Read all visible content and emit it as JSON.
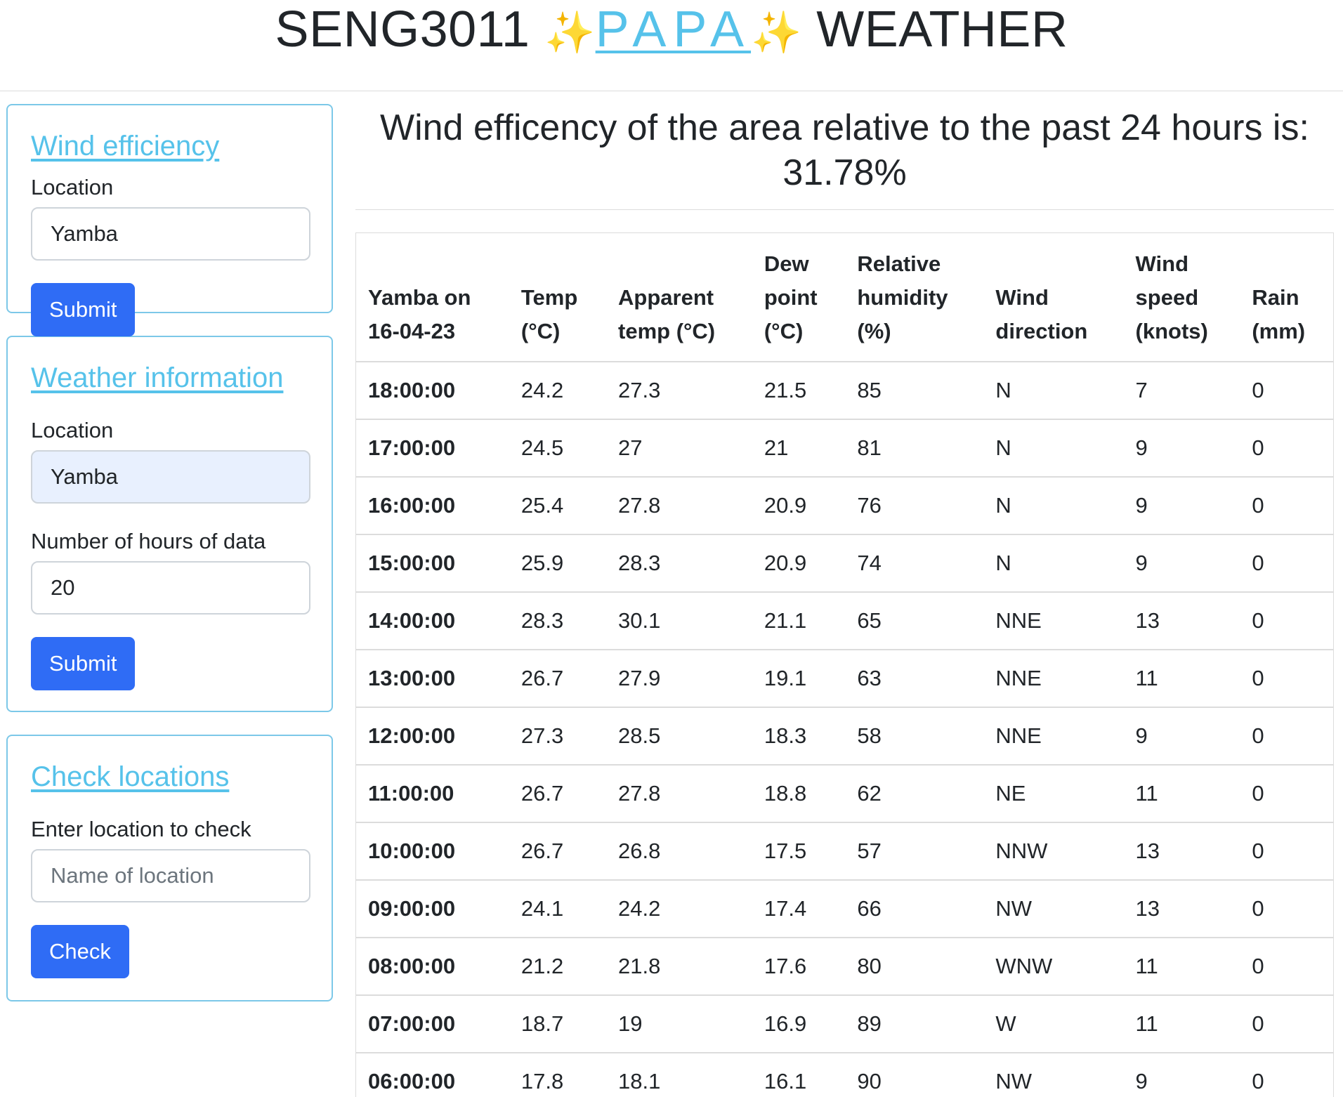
{
  "header": {
    "prefix": "SENG3011 ",
    "spark_left": "✨",
    "brand": "PAPA",
    "spark_right": "✨",
    "suffix": " WEATHER"
  },
  "wind_card": {
    "title": "Wind efficiency",
    "location_label": "Location",
    "location_value": "Yamba",
    "submit_label": "Submit"
  },
  "weather_card": {
    "title": "Weather information",
    "location_label": "Location",
    "location_value": "Yamba",
    "hours_label": "Number of hours of data",
    "hours_value": "20",
    "submit_label": "Submit"
  },
  "check_card": {
    "title": "Check locations",
    "label": "Enter location to check",
    "placeholder": "Name of location",
    "button_label": "Check"
  },
  "result": {
    "line1": "Wind efficency of the area relative to the past 24 hours is:",
    "line2": "31.78%"
  },
  "table": {
    "headers": [
      [
        "Yamba on",
        "16-04-23"
      ],
      [
        "Temp",
        "(°C)"
      ],
      [
        "Apparent",
        "temp (°C)"
      ],
      [
        "Dew",
        "point",
        "(°C)"
      ],
      [
        "Relative",
        "humidity",
        "(%)"
      ],
      [
        "Wind",
        "direction"
      ],
      [
        "Wind",
        "speed",
        "(knots)"
      ],
      [
        "Rain",
        "(mm)"
      ]
    ],
    "rows": [
      [
        "18:00:00",
        "24.2",
        "27.3",
        "21.5",
        "85",
        "N",
        "7",
        "0"
      ],
      [
        "17:00:00",
        "24.5",
        "27",
        "21",
        "81",
        "N",
        "9",
        "0"
      ],
      [
        "16:00:00",
        "25.4",
        "27.8",
        "20.9",
        "76",
        "N",
        "9",
        "0"
      ],
      [
        "15:00:00",
        "25.9",
        "28.3",
        "20.9",
        "74",
        "N",
        "9",
        "0"
      ],
      [
        "14:00:00",
        "28.3",
        "30.1",
        "21.1",
        "65",
        "NNE",
        "13",
        "0"
      ],
      [
        "13:00:00",
        "26.7",
        "27.9",
        "19.1",
        "63",
        "NNE",
        "11",
        "0"
      ],
      [
        "12:00:00",
        "27.3",
        "28.5",
        "18.3",
        "58",
        "NNE",
        "9",
        "0"
      ],
      [
        "11:00:00",
        "26.7",
        "27.8",
        "18.8",
        "62",
        "NE",
        "11",
        "0"
      ],
      [
        "10:00:00",
        "26.7",
        "26.8",
        "17.5",
        "57",
        "NNW",
        "13",
        "0"
      ],
      [
        "09:00:00",
        "24.1",
        "24.2",
        "17.4",
        "66",
        "NW",
        "13",
        "0"
      ],
      [
        "08:00:00",
        "21.2",
        "21.8",
        "17.6",
        "80",
        "WNW",
        "11",
        "0"
      ],
      [
        "07:00:00",
        "18.7",
        "19",
        "16.9",
        "89",
        "W",
        "11",
        "0"
      ],
      [
        "06:00:00",
        "17.8",
        "18.1",
        "16.1",
        "90",
        "NW",
        "9",
        "0"
      ]
    ]
  }
}
